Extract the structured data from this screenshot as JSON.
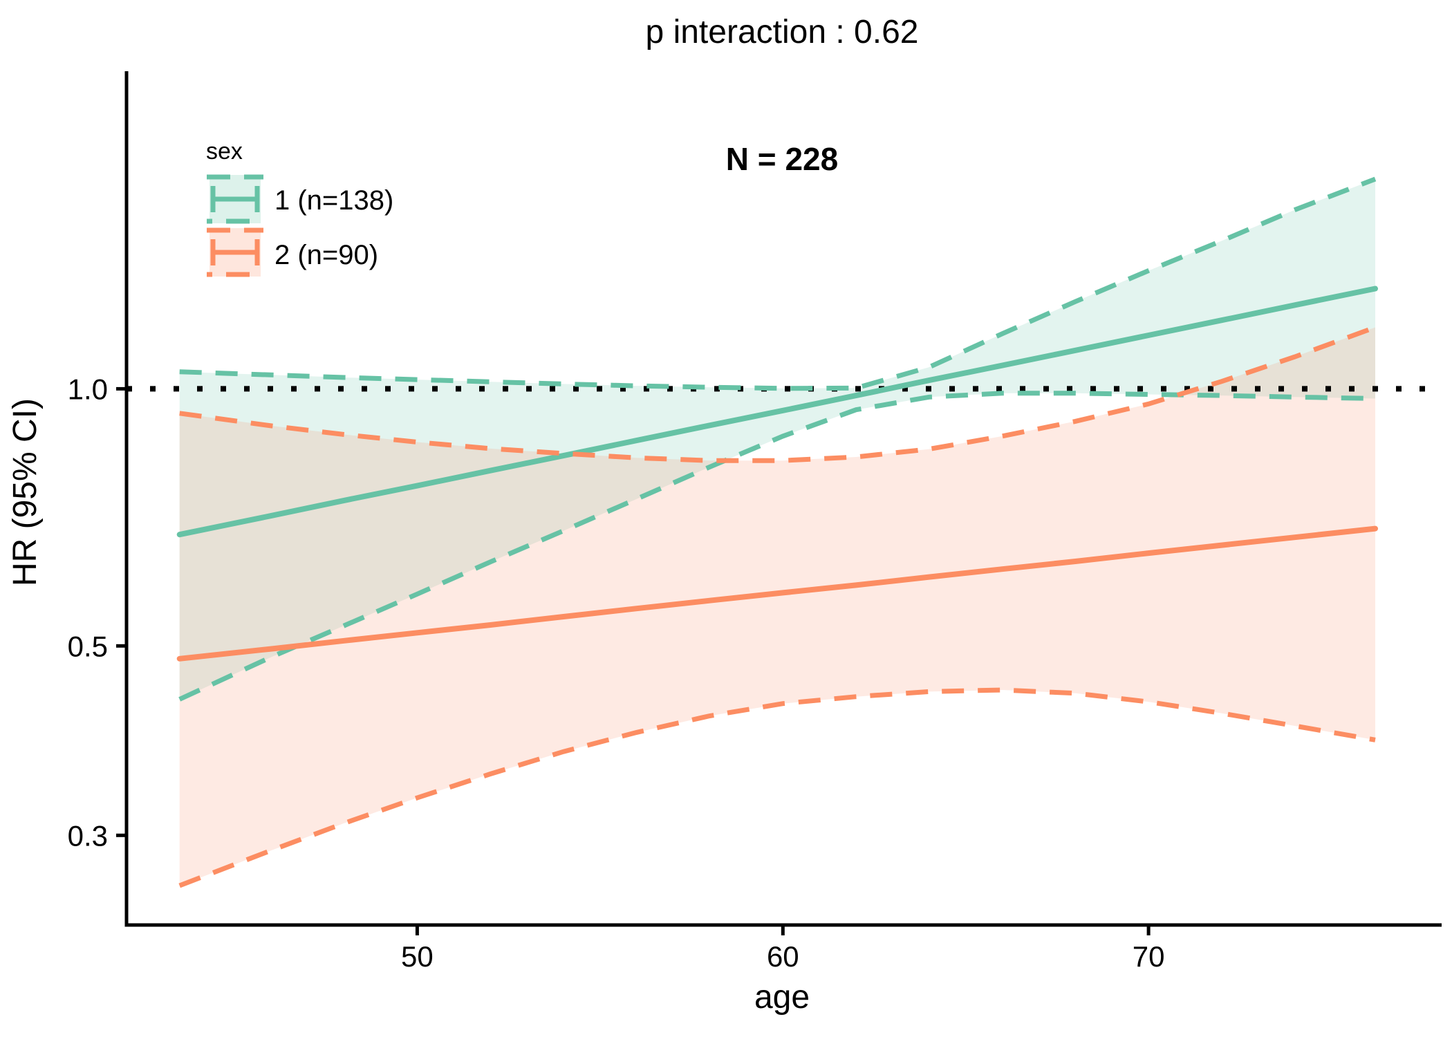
{
  "chart_data": {
    "type": "line",
    "title": "p interaction : 0.62",
    "annotation": "N = 228",
    "xlabel": "age",
    "ylabel": "HR (95% CI)",
    "grid": false,
    "background": "#ffffff",
    "x_axis": {
      "lim": [
        42.05,
        77.92
      ],
      "ticks": [
        50,
        60,
        70
      ],
      "tick_labels": [
        "50",
        "60",
        "70"
      ]
    },
    "y_axis": {
      "scale": "log10",
      "lim": [
        0.2356,
        2.354
      ],
      "ticks": [
        1.0,
        0.5,
        0.3
      ],
      "tick_labels": [
        "1.0",
        "0.5",
        "0.3"
      ]
    },
    "reference_line": {
      "y": 1.0,
      "style": "dotted",
      "color": "#000000"
    },
    "legend": {
      "title": "sex",
      "position": "top-left-inside",
      "items": [
        {
          "label": "1 (n=138)"
        },
        {
          "label": "2 (n=90)"
        }
      ]
    },
    "x": [
      43.5,
      46,
      48,
      50,
      52,
      54,
      56,
      58,
      60,
      62,
      64,
      66,
      68,
      70,
      72,
      74,
      76.2
    ],
    "series": [
      {
        "name": "sex 1",
        "legend_label": "1 (n=138)",
        "n": 138,
        "color": "#66C2A5",
        "fill_opacity": 0.18,
        "est": [
          0.675,
          0.71,
          0.74,
          0.77,
          0.802,
          0.835,
          0.87,
          0.906,
          0.943,
          0.982,
          1.023,
          1.065,
          1.109,
          1.155,
          1.203,
          1.253,
          1.31
        ],
        "lower": [
          0.433,
          0.485,
          0.528,
          0.575,
          0.627,
          0.682,
          0.743,
          0.81,
          0.88,
          0.945,
          0.978,
          0.988,
          0.988,
          0.985,
          0.982,
          0.978,
          0.974
        ],
        "upper": [
          1.047,
          1.038,
          1.031,
          1.025,
          1.019,
          1.013,
          1.008,
          1.004,
          1.001,
          1.002,
          1.06,
          1.16,
          1.265,
          1.375,
          1.49,
          1.62,
          1.76
        ]
      },
      {
        "name": "sex 2",
        "legend_label": "2 (n=90)",
        "n": 90,
        "color": "#FC8D62",
        "fill_opacity": 0.18,
        "est": [
          0.483,
          0.496,
          0.507,
          0.518,
          0.529,
          0.541,
          0.553,
          0.565,
          0.577,
          0.589,
          0.602,
          0.615,
          0.628,
          0.642,
          0.656,
          0.67,
          0.686
        ],
        "lower": [
          0.262,
          0.288,
          0.31,
          0.332,
          0.354,
          0.376,
          0.396,
          0.414,
          0.428,
          0.436,
          0.442,
          0.444,
          0.44,
          0.43,
          0.417,
          0.403,
          0.388
        ],
        "upper": [
          0.936,
          0.905,
          0.884,
          0.866,
          0.851,
          0.84,
          0.83,
          0.824,
          0.824,
          0.832,
          0.85,
          0.88,
          0.916,
          0.96,
          1.02,
          1.09,
          1.18
        ]
      }
    ]
  }
}
